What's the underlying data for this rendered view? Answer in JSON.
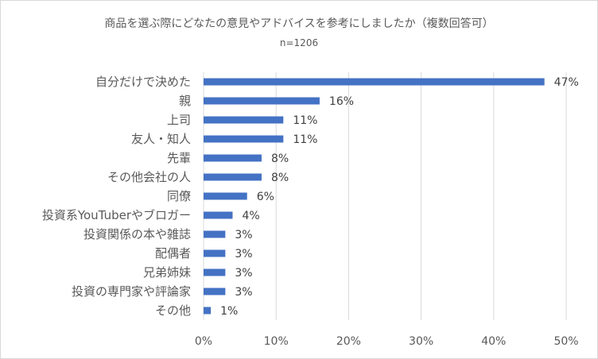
{
  "chart_data": {
    "type": "bar",
    "orientation": "horizontal",
    "title": "商品を選ぶ際にどなたの意見やアドバイスを参考にしましたか（複数回答可）",
    "subtitle": "n=1206",
    "categories": [
      "自分だけで決めた",
      "親",
      "上司",
      "友人・知人",
      "先輩",
      "その他会社の人",
      "同僚",
      "投資系YouTuberやブロガー",
      "投資関係の本や雑誌",
      "配偶者",
      "兄弟姉妹",
      "投資の専門家や評論家",
      "その他"
    ],
    "values": [
      47,
      16,
      11,
      11,
      8,
      8,
      6,
      4,
      3,
      3,
      3,
      3,
      1
    ],
    "value_labels": [
      "47%",
      "16%",
      "11%",
      "11%",
      "8%",
      "8%",
      "6%",
      "4%",
      "3%",
      "3%",
      "3%",
      "3%",
      "1%"
    ],
    "xlim": [
      0,
      50
    ],
    "xticks": [
      0,
      10,
      20,
      30,
      40,
      50
    ],
    "xtick_labels": [
      "0%",
      "10%",
      "20%",
      "30%",
      "40%",
      "50%"
    ],
    "xlabel": "",
    "ylabel": "",
    "grid": "vertical",
    "legend": "none",
    "bar_color": "#4472c4",
    "grid_color": "#d9d9d9"
  }
}
